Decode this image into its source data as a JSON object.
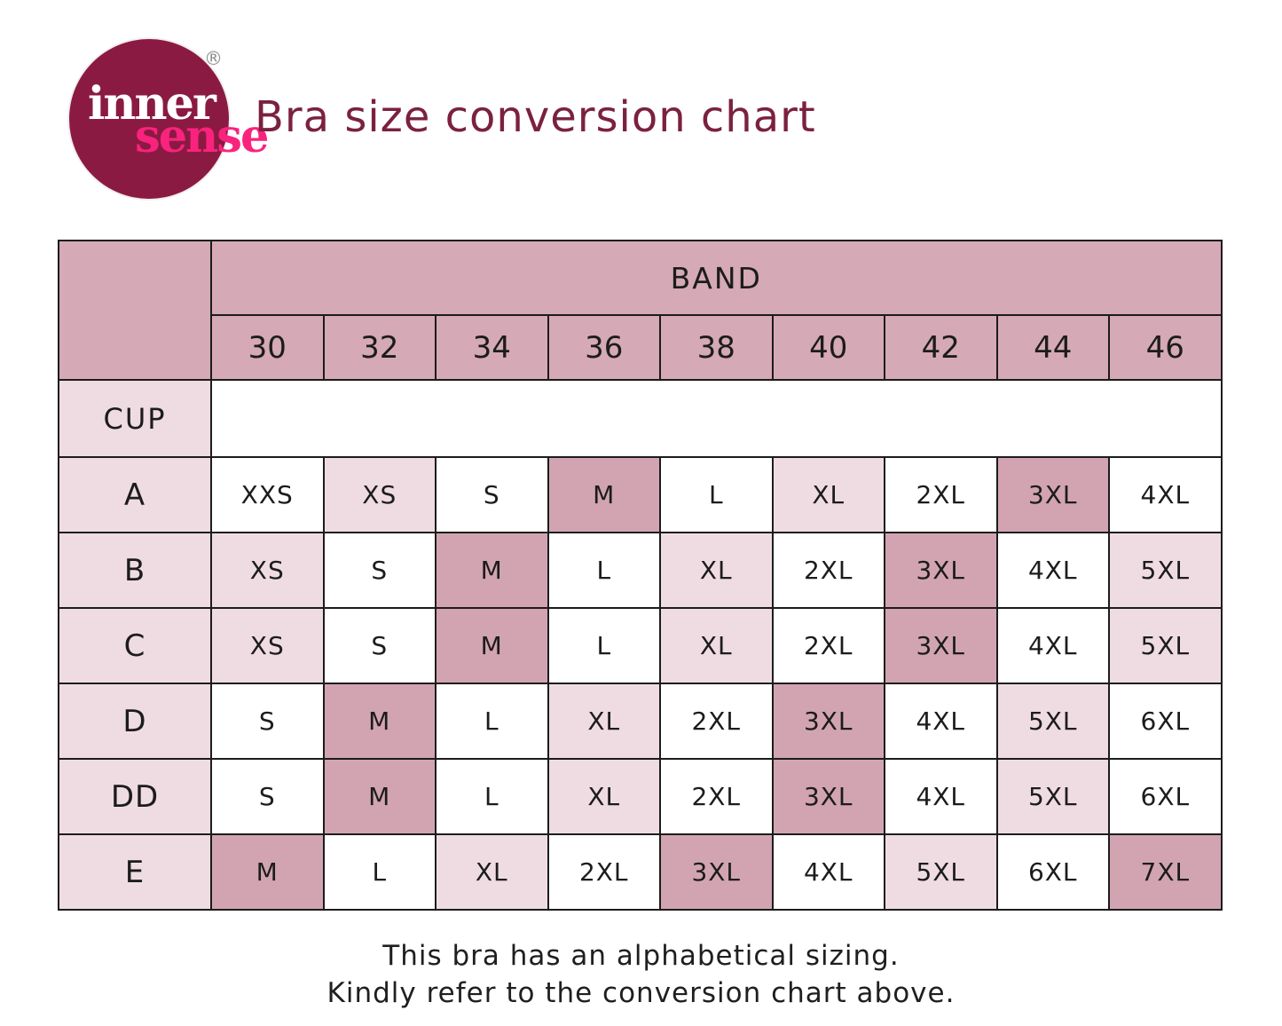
{
  "logo": {
    "word1": "inner",
    "word2": "sense",
    "registered": "®"
  },
  "title": "Bra size conversion chart",
  "table": {
    "band_header": "BAND",
    "cup_header": "CUP",
    "bands": [
      "30",
      "32",
      "34",
      "36",
      "38",
      "40",
      "42",
      "44",
      "46"
    ],
    "rows": [
      {
        "cup": "A",
        "sizes": [
          "XXS",
          "XS",
          "S",
          "M",
          "L",
          "XL",
          "2XL",
          "3XL",
          "4XL"
        ]
      },
      {
        "cup": "B",
        "sizes": [
          "XS",
          "S",
          "M",
          "L",
          "XL",
          "2XL",
          "3XL",
          "4XL",
          "5XL"
        ]
      },
      {
        "cup": "C",
        "sizes": [
          "XS",
          "S",
          "M",
          "L",
          "XL",
          "2XL",
          "3XL",
          "4XL",
          "5XL"
        ]
      },
      {
        "cup": "D",
        "sizes": [
          "S",
          "M",
          "L",
          "XL",
          "2XL",
          "3XL",
          "4XL",
          "5XL",
          "6XL"
        ]
      },
      {
        "cup": "DD",
        "sizes": [
          "S",
          "M",
          "L",
          "XL",
          "2XL",
          "3XL",
          "4XL",
          "5XL",
          "6XL"
        ]
      },
      {
        "cup": "E",
        "sizes": [
          "M",
          "L",
          "XL",
          "2XL",
          "3XL",
          "4XL",
          "5XL",
          "6XL",
          "7XL"
        ]
      }
    ],
    "size_shades": {
      "XXS": "white",
      "XS": "light",
      "S": "white",
      "M": "dark",
      "L": "white",
      "XL": "light",
      "2XL": "white",
      "3XL": "dark",
      "4XL": "white",
      "5XL": "light",
      "6XL": "white",
      "7XL": "dark"
    }
  },
  "footer": {
    "line1": "This bra has an alphabetical sizing.",
    "line2": "Kindly refer to the conversion chart above."
  },
  "colors": {
    "header_mauve": "#d5a9b6",
    "light_pink": "#efdce2",
    "highlight_mauve": "#d2a4b2",
    "title_maroon": "#7b2140",
    "logo_burgundy": "#8b1a42",
    "logo_pink": "#f9237e",
    "border_black": "#1c1c1c"
  }
}
